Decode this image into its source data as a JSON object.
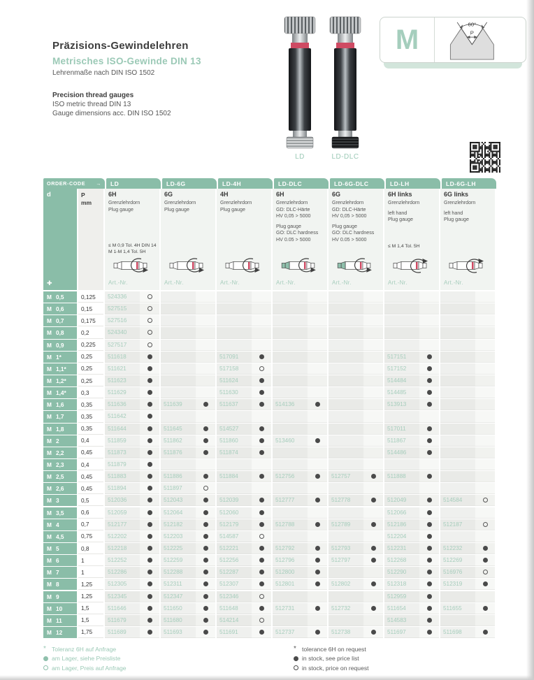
{
  "colors": {
    "accent_green": "#8abda8",
    "light_green_text": "#9bc9b6",
    "art_nr_green": "#a6cdbc",
    "status_dot": "#4a4a4a",
    "red_ring": "#cf4a63"
  },
  "header": {
    "title_de": "Präzisions-Gewindelehren",
    "subtitle_de": "Metrisches ISO-Gewinde DIN 13",
    "subtitle2_de": "Lehrenmaße nach DIN ISO 1502",
    "title_en": "Precision thread gauges",
    "subtitle_en": "ISO metric thread DIN 13",
    "subtitle2_en": "Gauge dimensions acc. DIN ISO 1502"
  },
  "product_images": {
    "left_label": "LD",
    "right_label": "LD-DLC"
  },
  "thread_symbol": {
    "letter": "M",
    "angle_label": "60°",
    "pitch_label": "P"
  },
  "icons": {
    "order_arrow": "→",
    "d_marker": "✚"
  },
  "table": {
    "order_code_label": "ORDER-CODE",
    "d_label": "d",
    "d_prefix": "M",
    "p_label": "P",
    "p_unit": "mm",
    "art_label": "Art.-Nr.",
    "columns": [
      {
        "code": "LD",
        "tol": "6H",
        "lines": [
          "Grenzlehrdorn",
          "Plug gauge"
        ],
        "note": "≤ M 0,9 Tol. 4H DIN 14\nM 1-M 1,4 Tol. 5H",
        "dlc": false,
        "lh": false
      },
      {
        "code": "LD-6G",
        "tol": "6G",
        "lines": [
          "Grenzlehrdorn",
          "Plug gauge"
        ],
        "note": "",
        "dlc": false,
        "lh": false
      },
      {
        "code": "LD-4H",
        "tol": "4H",
        "lines": [
          "Grenzlehrdorn",
          "Plug gauge"
        ],
        "note": "",
        "dlc": false,
        "lh": false
      },
      {
        "code": "LD-DLC",
        "tol": "6H",
        "lines": [
          "Grenzlehrdorn",
          "GD: DLC-Härte",
          "HV 0,05 > 5000",
          "",
          "Plug gauge",
          "GO: DLC hardness",
          "HV 0.05 > 5000"
        ],
        "note": "",
        "dlc": true,
        "lh": false
      },
      {
        "code": "LD-6G-DLC",
        "tol": "6G",
        "lines": [
          "Grenzlehrdorn",
          "GD: DLC-Härte",
          "HV 0,05 > 5000",
          "",
          "Plug gauge",
          "GO: DLC hardness",
          "HV 0.05 > 5000"
        ],
        "note": "",
        "dlc": true,
        "lh": false
      },
      {
        "code": "LD-LH",
        "tol": "6H links",
        "lines": [
          "Grenzlehrdorn",
          "",
          "left hand",
          "Plug gauge"
        ],
        "note": "≤ M 1,4 Tol. 5H",
        "dlc": false,
        "lh": true
      },
      {
        "code": "LD-6G-LH",
        "tol": "6G links",
        "lines": [
          "Grenzlehrdorn",
          "",
          "left hand",
          "Plug gauge"
        ],
        "note": "",
        "dlc": false,
        "lh": true
      }
    ],
    "rows": [
      {
        "d": "0,5",
        "p": "0,125",
        "c": [
          [
            "524336",
            "o"
          ],
          0,
          0,
          0,
          0,
          0,
          0
        ]
      },
      {
        "d": "0,6",
        "p": "0,15",
        "c": [
          [
            "527515",
            "o"
          ],
          0,
          0,
          0,
          0,
          0,
          0
        ]
      },
      {
        "d": "0,7",
        "p": "0,175",
        "c": [
          [
            "527516",
            "o"
          ],
          0,
          0,
          0,
          0,
          0,
          0
        ]
      },
      {
        "d": "0,8",
        "p": "0,2",
        "c": [
          [
            "524340",
            "o"
          ],
          0,
          0,
          0,
          0,
          0,
          0
        ]
      },
      {
        "d": "0,9",
        "p": "0,225",
        "c": [
          [
            "527517",
            "o"
          ],
          0,
          0,
          0,
          0,
          0,
          0
        ]
      },
      {
        "d": "1*",
        "p": "0,25",
        "c": [
          [
            "511618",
            "f"
          ],
          0,
          [
            "517091",
            "f"
          ],
          0,
          0,
          [
            "517151",
            "f"
          ],
          0
        ]
      },
      {
        "d": "1,1*",
        "p": "0,25",
        "c": [
          [
            "511621",
            "f"
          ],
          0,
          [
            "517158",
            "o"
          ],
          0,
          0,
          [
            "517152",
            "f"
          ],
          0
        ]
      },
      {
        "d": "1,2*",
        "p": "0,25",
        "c": [
          [
            "511623",
            "f"
          ],
          0,
          [
            "511624",
            "f"
          ],
          0,
          0,
          [
            "514484",
            "f"
          ],
          0
        ]
      },
      {
        "d": "1,4*",
        "p": "0,3",
        "c": [
          [
            "511629",
            "f"
          ],
          0,
          [
            "511630",
            "f"
          ],
          0,
          0,
          [
            "514485",
            "f"
          ],
          0
        ]
      },
      {
        "d": "1,6",
        "p": "0,35",
        "c": [
          [
            "511636",
            "f"
          ],
          [
            "511639",
            "f"
          ],
          [
            "511637",
            "f"
          ],
          [
            "514136",
            "f"
          ],
          0,
          [
            "513913",
            "f"
          ],
          0
        ]
      },
      {
        "d": "1,7",
        "p": "0,35",
        "c": [
          [
            "511642",
            "f"
          ],
          0,
          0,
          0,
          0,
          0,
          0
        ]
      },
      {
        "d": "1,8",
        "p": "0,35",
        "c": [
          [
            "511644",
            "f"
          ],
          [
            "511645",
            "f"
          ],
          [
            "514527",
            "f"
          ],
          0,
          0,
          [
            "517011",
            "f"
          ],
          0
        ]
      },
      {
        "d": "2",
        "p": "0,4",
        "c": [
          [
            "511859",
            "f"
          ],
          [
            "511862",
            "f"
          ],
          [
            "511860",
            "f"
          ],
          [
            "513460",
            "f"
          ],
          0,
          [
            "511867",
            "f"
          ],
          0
        ]
      },
      {
        "d": "2,2",
        "p": "0,45",
        "c": [
          [
            "511873",
            "f"
          ],
          [
            "511876",
            "f"
          ],
          [
            "511874",
            "f"
          ],
          0,
          0,
          [
            "514486",
            "f"
          ],
          0
        ]
      },
      {
        "d": "2,3",
        "p": "0,4",
        "c": [
          [
            "511879",
            "f"
          ],
          0,
          0,
          0,
          0,
          0,
          0
        ]
      },
      {
        "d": "2,5",
        "p": "0,45",
        "c": [
          [
            "511883",
            "f"
          ],
          [
            "511886",
            "f"
          ],
          [
            "511884",
            "f"
          ],
          [
            "512756",
            "f"
          ],
          [
            "512757",
            "f"
          ],
          [
            "511888",
            "f"
          ],
          0
        ]
      },
      {
        "d": "2,6",
        "p": "0,45",
        "c": [
          [
            "511894",
            "f"
          ],
          [
            "511897",
            "o"
          ],
          0,
          0,
          0,
          0,
          0
        ]
      },
      {
        "d": "3",
        "p": "0,5",
        "c": [
          [
            "512036",
            "f"
          ],
          [
            "512043",
            "f"
          ],
          [
            "512039",
            "f"
          ],
          [
            "512777",
            "f"
          ],
          [
            "512778",
            "f"
          ],
          [
            "512049",
            "f"
          ],
          [
            "514584",
            "o"
          ]
        ]
      },
      {
        "d": "3,5",
        "p": "0,6",
        "c": [
          [
            "512059",
            "f"
          ],
          [
            "512064",
            "f"
          ],
          [
            "512060",
            "f"
          ],
          0,
          0,
          [
            "512066",
            "f"
          ],
          0
        ]
      },
      {
        "d": "4",
        "p": "0,7",
        "c": [
          [
            "512177",
            "f"
          ],
          [
            "512182",
            "f"
          ],
          [
            "512179",
            "f"
          ],
          [
            "512788",
            "f"
          ],
          [
            "512789",
            "f"
          ],
          [
            "512186",
            "f"
          ],
          [
            "512187",
            "o"
          ]
        ]
      },
      {
        "d": "4,5",
        "p": "0,75",
        "c": [
          [
            "512202",
            "f"
          ],
          [
            "512203",
            "f"
          ],
          [
            "514587",
            "o"
          ],
          0,
          0,
          [
            "512204",
            "f"
          ],
          0
        ]
      },
      {
        "d": "5",
        "p": "0,8",
        "c": [
          [
            "512218",
            "f"
          ],
          [
            "512225",
            "f"
          ],
          [
            "512221",
            "f"
          ],
          [
            "512792",
            "f"
          ],
          [
            "512793",
            "f"
          ],
          [
            "512231",
            "f"
          ],
          [
            "512232",
            "f"
          ]
        ]
      },
      {
        "d": "6",
        "p": "1",
        "c": [
          [
            "512252",
            "f"
          ],
          [
            "512259",
            "f"
          ],
          [
            "512256",
            "f"
          ],
          [
            "512796",
            "f"
          ],
          [
            "512797",
            "f"
          ],
          [
            "512268",
            "f"
          ],
          [
            "512269",
            "f"
          ]
        ]
      },
      {
        "d": "7",
        "p": "1",
        "c": [
          [
            "512286",
            "f"
          ],
          [
            "512288",
            "f"
          ],
          [
            "512287",
            "f"
          ],
          [
            "512800",
            "f"
          ],
          0,
          [
            "512290",
            "f"
          ],
          [
            "516976",
            "o"
          ]
        ]
      },
      {
        "d": "8",
        "p": "1,25",
        "c": [
          [
            "512305",
            "f"
          ],
          [
            "512311",
            "f"
          ],
          [
            "512307",
            "f"
          ],
          [
            "512801",
            "f"
          ],
          [
            "512802",
            "f"
          ],
          [
            "512318",
            "f"
          ],
          [
            "512319",
            "f"
          ]
        ]
      },
      {
        "d": "9",
        "p": "1,25",
        "c": [
          [
            "512345",
            "f"
          ],
          [
            "512347",
            "f"
          ],
          [
            "512346",
            "o"
          ],
          0,
          0,
          [
            "512959",
            "f"
          ],
          0
        ]
      },
      {
        "d": "10",
        "p": "1,5",
        "c": [
          [
            "511646",
            "f"
          ],
          [
            "511650",
            "f"
          ],
          [
            "511648",
            "f"
          ],
          [
            "512731",
            "f"
          ],
          [
            "512732",
            "f"
          ],
          [
            "511654",
            "f"
          ],
          [
            "511655",
            "f"
          ]
        ]
      },
      {
        "d": "11",
        "p": "1,5",
        "c": [
          [
            "511679",
            "f"
          ],
          [
            "511680",
            "f"
          ],
          [
            "514214",
            "o"
          ],
          0,
          0,
          [
            "514583",
            "f"
          ],
          0
        ]
      },
      {
        "d": "12",
        "p": "1,75",
        "c": [
          [
            "511689",
            "f"
          ],
          [
            "511693",
            "f"
          ],
          [
            "511691",
            "f"
          ],
          [
            "512737",
            "f"
          ],
          [
            "512738",
            "f"
          ],
          [
            "511697",
            "f"
          ],
          [
            "511698",
            "f"
          ]
        ]
      }
    ]
  },
  "legend": {
    "de": [
      {
        "sym": "star",
        "text": "Toleranz 6H auf Anfrage"
      },
      {
        "sym": "filled",
        "text": "am Lager, siehe Preisliste"
      },
      {
        "sym": "open",
        "text": "am Lager, Preis auf Anfrage"
      }
    ],
    "en": [
      {
        "sym": "star",
        "text": "tolerance 6H on request"
      },
      {
        "sym": "filled",
        "text": "in stock, see price list"
      },
      {
        "sym": "open",
        "text": "in stock, price on request"
      }
    ]
  }
}
